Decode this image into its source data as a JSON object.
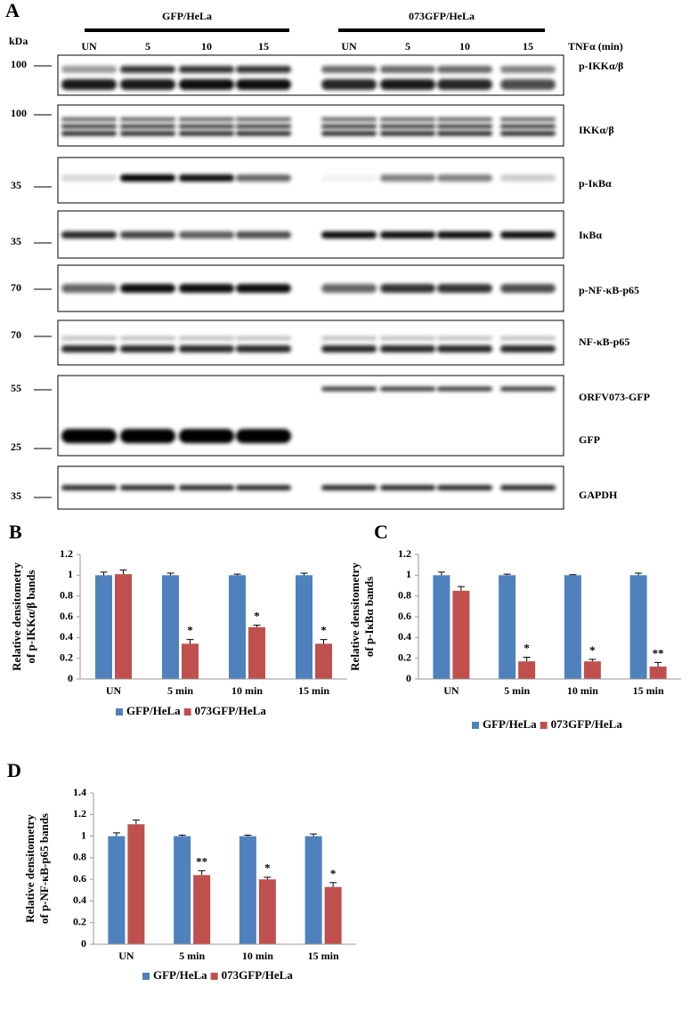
{
  "blot": {
    "panel_label": "A",
    "kda_label": "kDa",
    "groups": [
      "GFP/HeLa",
      "073GFP/HeLa"
    ],
    "lanes": [
      "UN",
      "5",
      "10",
      "15",
      "UN",
      "5",
      "10",
      "15"
    ],
    "treatment_label": "TNFα (min)",
    "boxes": [
      {
        "bands": [
          {
            "marker": "100",
            "label": "p-IKKα/β"
          }
        ]
      },
      {
        "bands": [
          {
            "marker": "100",
            "label": "IKKα/β"
          }
        ]
      },
      {
        "bands": [
          {
            "marker": "35",
            "label": "p-IκBα"
          }
        ]
      },
      {
        "bands": [
          {
            "marker": "35",
            "label": "IκBα"
          }
        ]
      },
      {
        "bands": [
          {
            "marker": "70",
            "label": "p-NF-κB-p65"
          }
        ]
      },
      {
        "bands": [
          {
            "marker": "70",
            "label": "NF-κB-p65"
          }
        ]
      },
      {
        "bands": [
          {
            "marker": "55",
            "label": "ORFV073-GFP"
          },
          {
            "marker": "25",
            "label": "GFP"
          }
        ]
      },
      {
        "bands": [
          {
            "marker": "35",
            "label": "GAPDH"
          }
        ]
      }
    ]
  },
  "chart_data": [
    {
      "type": "bar",
      "panel_label": "B",
      "y_label": [
        "Relative densitometry",
        "of p-IKKα/β bands"
      ],
      "categories": [
        "UN",
        "5 min",
        "10 min",
        "15 min"
      ],
      "series": [
        {
          "name": "GFP/HeLa",
          "color": "#4f81bd",
          "values": [
            1,
            1,
            1,
            1
          ],
          "errors": [
            0.03,
            0.02,
            0.01,
            0.02
          ],
          "significance": [
            null,
            null,
            null,
            null
          ]
        },
        {
          "name": "073GFP/HeLa",
          "color": "#c0504d",
          "values": [
            1.01,
            0.34,
            0.5,
            0.34
          ],
          "errors": [
            0.04,
            0.04,
            0.02,
            0.04
          ],
          "significance": [
            null,
            "*",
            "*",
            "*"
          ]
        }
      ],
      "ylim": [
        0,
        1.2
      ],
      "yticks": [
        0,
        0.2,
        0.4,
        0.6,
        0.8,
        1,
        1.2
      ],
      "legend": "bottom"
    },
    {
      "type": "bar",
      "panel_label": "C",
      "y_label": [
        "Relative densitometry",
        "of p-IκBα bands"
      ],
      "categories": [
        "UN",
        "5 min",
        "10 min",
        "15 min"
      ],
      "series": [
        {
          "name": "GFP/HeLa",
          "color": "#4f81bd",
          "values": [
            1,
            1,
            1,
            1
          ],
          "errors": [
            0.03,
            0.01,
            0.005,
            0.02
          ],
          "significance": [
            null,
            null,
            null,
            null
          ]
        },
        {
          "name": "073GFP/HeLa",
          "color": "#c0504d",
          "values": [
            0.85,
            0.17,
            0.17,
            0.12
          ],
          "errors": [
            0.04,
            0.04,
            0.02,
            0.04
          ],
          "significance": [
            null,
            "*",
            "*",
            "**"
          ]
        }
      ],
      "ylim": [
        0,
        1.2
      ],
      "yticks": [
        0,
        0.2,
        0.4,
        0.6,
        0.8,
        1,
        1.2
      ],
      "legend": "bottom"
    },
    {
      "type": "bar",
      "panel_label": "D",
      "y_label": [
        "Relative densitometry",
        "of p-NF-κB-p65 bands"
      ],
      "categories": [
        "UN",
        "5 min",
        "10 min",
        "15 min"
      ],
      "series": [
        {
          "name": "GFP/HeLa",
          "color": "#4f81bd",
          "values": [
            1,
            1,
            1,
            1
          ],
          "errors": [
            0.03,
            0.01,
            0.01,
            0.02
          ],
          "significance": [
            null,
            null,
            null,
            null
          ]
        },
        {
          "name": "073GFP/HeLa",
          "color": "#c0504d",
          "values": [
            1.11,
            0.64,
            0.6,
            0.53
          ],
          "errors": [
            0.04,
            0.04,
            0.02,
            0.04
          ],
          "significance": [
            null,
            "**",
            "*",
            "*"
          ]
        }
      ],
      "ylim": [
        0,
        1.4
      ],
      "yticks": [
        0,
        0.2,
        0.4,
        0.6,
        0.8,
        1,
        1.2,
        1.4
      ],
      "legend": "bottom"
    }
  ]
}
